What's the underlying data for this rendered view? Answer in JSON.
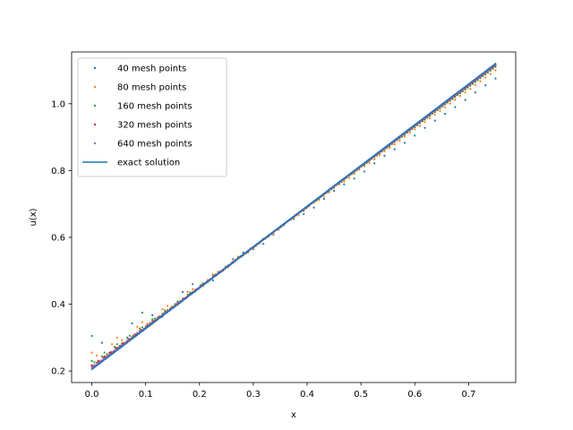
{
  "chart_data": {
    "type": "scatter",
    "title": "",
    "xlabel": "x",
    "ylabel": "u(x)",
    "xlim": [
      -0.0375,
      0.7875
    ],
    "ylim": [
      0.1654,
      1.155
    ],
    "xticks": [
      0.0,
      0.1,
      0.2,
      0.3,
      0.4,
      0.5,
      0.6,
      0.7
    ],
    "xtick_labels": [
      "0.0",
      "0.1",
      "0.2",
      "0.3",
      "0.4",
      "0.5",
      "0.6",
      "0.7"
    ],
    "yticks": [
      0.2,
      0.4,
      0.6,
      0.8,
      1.0
    ],
    "ytick_labels": [
      "0.2",
      "0.4",
      "0.6",
      "0.8",
      "1.0"
    ],
    "grid": false,
    "legend_position": "top-left",
    "series": [
      {
        "name": "40 mesh points",
        "kind": "scatter",
        "color": "#1f77b4",
        "n": 40,
        "bump": 0.1,
        "decay": 0.5,
        "bias": 0.045
      },
      {
        "name": "80 mesh points",
        "kind": "scatter",
        "color": "#ff7f0e",
        "n": 80,
        "bump": 0.05,
        "decay": 0.5,
        "bias": 0.02
      },
      {
        "name": "160 mesh points",
        "kind": "scatter",
        "color": "#2ca02c",
        "n": 160,
        "bump": 0.025,
        "decay": 0.5,
        "bias": 0.01
      },
      {
        "name": "320 mesh points",
        "kind": "scatter",
        "color": "#d62728",
        "n": 320,
        "bump": 0.012,
        "decay": 0.5,
        "bias": 0.005
      },
      {
        "name": "640 mesh points",
        "kind": "scatter",
        "color": "#9467bd",
        "n": 640,
        "bump": 0.006,
        "decay": 0.5,
        "bias": 0.0025
      },
      {
        "name": "exact solution",
        "kind": "line",
        "color": "#1f77b4",
        "x": [
          0.0,
          0.75
        ],
        "y": [
          0.205,
          1.12
        ]
      }
    ]
  }
}
